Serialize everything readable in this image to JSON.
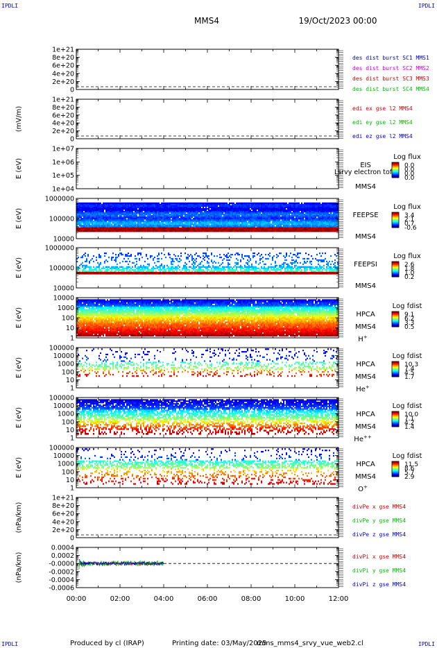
{
  "header": {
    "spacecraft": "MMS4",
    "date": "19/Oct/2023 00:00",
    "corner_tl": "IPDLI",
    "corner_tr": "IPDLI",
    "corner_bl": "IPDLI",
    "corner_br": "IPDLI"
  },
  "footer": {
    "produced_by": "Produced by  cl (IRAP)",
    "printing_date": "Printing date: 03/May/2025",
    "script_name": "mms_mms4_srvy_vue_web2.cl"
  },
  "chart_data": [
    {
      "id": "p1",
      "type": "line",
      "ylabel": "",
      "yticks": [
        "1e+21",
        "8e+20",
        "6e+20",
        "4e+20",
        "2e+20",
        "0"
      ],
      "ylim": [
        0,
        1e+21
      ],
      "legend": [
        {
          "text": "des dist burst SC1 MMS1",
          "color": "#0000cc"
        },
        {
          "text": "des dist burst SC2 MMS2",
          "color": "#cc00cc"
        },
        {
          "text": "des dist burst SC3 MMS3",
          "color": "#cc0000"
        },
        {
          "text": "des dist burst SC4 MMS4",
          "color": "#00bb00"
        }
      ],
      "zero_line": true,
      "series": []
    },
    {
      "id": "p2",
      "type": "line",
      "ylabel": "(mV/m)",
      "yticks": [
        "1e+21",
        "8e+20",
        "6e+20",
        "4e+20",
        "2e+20",
        "0"
      ],
      "ylim": [
        0,
        1e+21
      ],
      "legend": [
        {
          "text": "edi ex gse l2 MMS4",
          "color": "#cc0000"
        },
        {
          "text": "edi ey gse l2 MMS4",
          "color": "#00bb00"
        },
        {
          "text": "edi ez gse l2 MMS4",
          "color": "#0000cc"
        }
      ],
      "zero_line": true,
      "series": []
    },
    {
      "id": "p3",
      "type": "heatmap",
      "ylabel": "E (eV)",
      "yticks": [
        "1e+07",
        "1e+06",
        "1e+05",
        "1e+04"
      ],
      "labels": [
        "EIS",
        "MMS4"
      ],
      "overlay_text": "Lsrvy electron tof",
      "colorbar": {
        "title": "Log flux",
        "ticks": [
          "0.0",
          "0.0",
          "0.0",
          "0.0"
        ]
      },
      "empty": true
    },
    {
      "id": "p4",
      "type": "heatmap",
      "ylabel": "E (eV)",
      "yticks": [
        "1000000",
        "100000",
        "10000"
      ],
      "labels": [
        "FEEPSE",
        "MMS4"
      ],
      "colorbar": {
        "title": "Log flux",
        "ticks": [
          "3.4",
          "2.1",
          "0.7",
          "-0.6"
        ]
      }
    },
    {
      "id": "p5",
      "type": "heatmap",
      "ylabel": "E (eV)",
      "yticks": [
        "1000000",
        "100000",
        "10000"
      ],
      "labels": [
        "FEEPSI",
        "MMS4"
      ],
      "colorbar": {
        "title": "Log flux",
        "ticks": [
          "2.6",
          "1.8",
          "1.0",
          "0.2"
        ]
      }
    },
    {
      "id": "p6",
      "type": "heatmap",
      "ylabel": "E (eV)",
      "yticks": [
        "10000",
        "1000",
        "100",
        "10",
        "1"
      ],
      "labels": [
        "HPCA",
        "MMS4"
      ],
      "species": "H",
      "species_sup": "+",
      "colorbar": {
        "title": "Log fdist",
        "ticks": [
          "9.1",
          "6.2",
          "3.3",
          "0.5"
        ]
      }
    },
    {
      "id": "p7",
      "type": "heatmap",
      "ylabel": "E (eV)",
      "yticks": [
        "100000",
        "10000",
        "1000",
        "100",
        "10",
        "1"
      ],
      "labels": [
        "HPCA",
        "MMS4"
      ],
      "species": "He",
      "species_sup": "+",
      "colorbar": {
        "title": "Log fdist",
        "ticks": [
          "10.3",
          "7.4",
          "4.5",
          "1.7"
        ]
      }
    },
    {
      "id": "p8",
      "type": "heatmap",
      "ylabel": "E (eV)",
      "yticks": [
        "100000",
        "10000",
        "1000",
        "100",
        "10",
        "1"
      ],
      "labels": [
        "HPCA",
        "MMS4"
      ],
      "species": "He",
      "species_sup": "++",
      "colorbar": {
        "title": "Log fdist",
        "ticks": [
          "10.0",
          "7.1",
          "4.2",
          "1.4"
        ]
      }
    },
    {
      "id": "p9",
      "type": "heatmap",
      "ylabel": "E (eV)",
      "yticks": [
        "100000",
        "10000",
        "1000",
        "100",
        "10",
        "1"
      ],
      "labels": [
        "HPCA",
        "MMS4"
      ],
      "species": "O",
      "species_sup": "+",
      "colorbar": {
        "title": "Log fdist",
        "ticks": [
          "11.5",
          "8.6",
          "5.7",
          "2.9"
        ]
      }
    },
    {
      "id": "p10",
      "type": "line",
      "ylabel": "(nPa/km)",
      "yticks": [
        "1e+21",
        "8e+20",
        "6e+20",
        "4e+20",
        "2e+20",
        "0"
      ],
      "ylim": [
        0,
        1e+21
      ],
      "legend": [
        {
          "text": "divPe x gse MMS4",
          "color": "#cc0000"
        },
        {
          "text": "divPe y gse MMS4",
          "color": "#00bb00"
        },
        {
          "text": "divPe z gse MMS4",
          "color": "#0000cc"
        }
      ],
      "zero_line": true,
      "series": []
    },
    {
      "id": "p11",
      "type": "line",
      "ylabel": "(nPa/km)",
      "yticks": [
        "0.0004",
        "0.0002",
        "-0.0000",
        "-0.0002",
        "-0.0004",
        "-0.0006"
      ],
      "ylim": [
        -0.0006,
        0.0004
      ],
      "legend": [
        {
          "text": "divPi x gse MMS4",
          "color": "#cc0000"
        },
        {
          "text": "divPi y gse MMS4",
          "color": "#00bb00"
        },
        {
          "text": "divPi z gse MMS4",
          "color": "#0000cc"
        }
      ],
      "zero_line": true,
      "series": [
        {
          "color": "#cc0000",
          "x_hours": [
            0.0,
            4.0
          ]
        },
        {
          "color": "#00bb00",
          "x_hours": [
            0.0,
            4.0
          ]
        },
        {
          "color": "#0000cc",
          "x_hours": [
            0.0,
            4.0
          ]
        }
      ]
    }
  ],
  "time_axis": {
    "xlim_hours": [
      0,
      12
    ],
    "ticks": [
      "00:00",
      "02:00",
      "04:00",
      "06:00",
      "08:00",
      "10:00",
      "12:00"
    ]
  }
}
